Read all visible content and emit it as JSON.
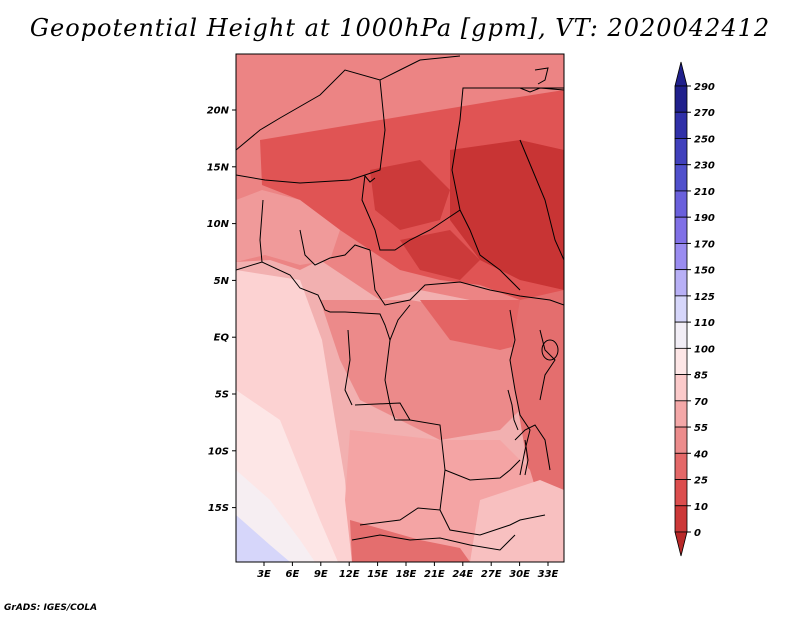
{
  "title": "Geopotential Height at 1000hPa [gpm], VT: 2020042412",
  "credit": "GrADS: IGES/COLA",
  "map": {
    "lat_labels": [
      "20N",
      "15N",
      "10N",
      "5N",
      "EQ",
      "5S",
      "10S",
      "15S"
    ],
    "lon_labels": [
      "3E",
      "6E",
      "9E",
      "12E",
      "15E",
      "18E",
      "21E",
      "24E",
      "27E",
      "30E",
      "33E"
    ]
  },
  "colorbar": {
    "labels": [
      "290",
      "270",
      "250",
      "230",
      "210",
      "190",
      "170",
      "150",
      "125",
      "110",
      "100",
      "85",
      "70",
      "55",
      "40",
      "25",
      "10",
      "0"
    ],
    "colors": [
      "#20208c",
      "#3030a8",
      "#4040bc",
      "#5050cc",
      "#6a60dc",
      "#8070e6",
      "#9a8cf0",
      "#b8b0f6",
      "#d6d6fa",
      "#f2eef6",
      "#fde6e6",
      "#fbcaca",
      "#f4a8a8",
      "#ec8c8c",
      "#e46868",
      "#dc4e4e",
      "#cc3838",
      "#b82828"
    ]
  }
}
